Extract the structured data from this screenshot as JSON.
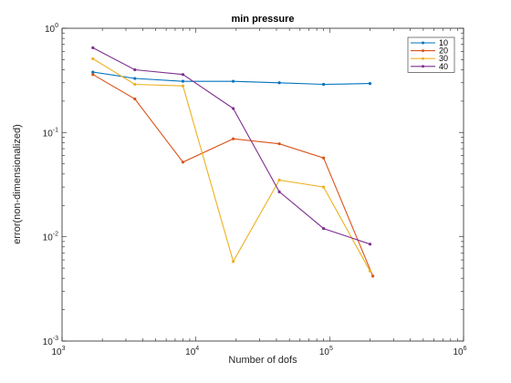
{
  "chart_data": {
    "type": "line",
    "title": "min pressure",
    "xlabel": "Number of dofs",
    "ylabel": "error(non-dimensionalized)",
    "xscale": "log",
    "yscale": "log",
    "xlim": [
      1000,
      1000000
    ],
    "ylim": [
      0.001,
      1
    ],
    "x_ticks": [
      {
        "base": "10",
        "exp": "3",
        "value": 1000
      },
      {
        "base": "10",
        "exp": "4",
        "value": 10000
      },
      {
        "base": "10",
        "exp": "5",
        "value": 100000
      },
      {
        "base": "10",
        "exp": "6",
        "value": 1000000
      }
    ],
    "y_ticks": [
      {
        "base": "10",
        "exp": "-3",
        "value": 0.001
      },
      {
        "base": "10",
        "exp": "-2",
        "value": 0.01
      },
      {
        "base": "10",
        "exp": "-1",
        "value": 0.1
      },
      {
        "base": "10",
        "exp": "0",
        "value": 1
      }
    ],
    "grid": false,
    "legend_position": "top-right",
    "series": [
      {
        "name": "10",
        "color": "#0072bd",
        "marker": "dot",
        "x": [
          1700,
          3500,
          8000,
          19000,
          42000,
          90000,
          200000
        ],
        "y": [
          0.38,
          0.33,
          0.31,
          0.31,
          0.3,
          0.29,
          0.295
        ]
      },
      {
        "name": "20",
        "color": "#d95319",
        "marker": "dot",
        "x": [
          1700,
          3500,
          8000,
          19000,
          42000,
          90000,
          210000
        ],
        "y": [
          0.36,
          0.21,
          0.052,
          0.087,
          0.078,
          0.057,
          0.0042
        ]
      },
      {
        "name": "30",
        "color": "#edb120",
        "marker": "dot",
        "x": [
          1700,
          3500,
          8000,
          19000,
          42000,
          90000,
          200000
        ],
        "y": [
          0.51,
          0.29,
          0.28,
          0.0058,
          0.035,
          0.03,
          0.0047
        ]
      },
      {
        "name": "40",
        "color": "#7e2f8e",
        "marker": "dot",
        "x": [
          1700,
          3500,
          8000,
          19000,
          42000,
          90000,
          200000
        ],
        "y": [
          0.65,
          0.4,
          0.36,
          0.17,
          0.027,
          0.012,
          0.0085
        ]
      }
    ]
  }
}
